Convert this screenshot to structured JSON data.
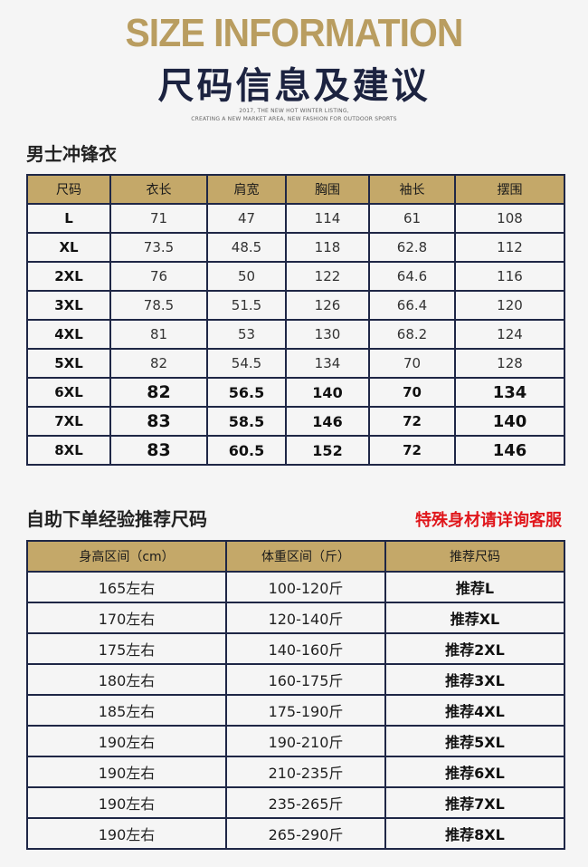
{
  "header": {
    "title_en": "SIZE INFORMATION",
    "title_cn": "尺码信息及建议",
    "tagline_1": "2017, THE NEW HOT WINTER LISTING,",
    "tagline_2": "CREATING A NEW MARKET AREA,  NEW FASHION FOR OUTDOOR SPORTS"
  },
  "size_table": {
    "title": "男士冲锋衣",
    "headers": [
      "尺码",
      "衣长",
      "肩宽",
      "胸围",
      "袖长",
      "摆围"
    ],
    "rows": [
      [
        "L",
        "71",
        "47",
        "114",
        "61",
        "108"
      ],
      [
        "XL",
        "73.5",
        "48.5",
        "118",
        "62.8",
        "112"
      ],
      [
        "2XL",
        "76",
        "50",
        "122",
        "64.6",
        "116"
      ],
      [
        "3XL",
        "78.5",
        "51.5",
        "126",
        "66.4",
        "120"
      ],
      [
        "4XL",
        "81",
        "53",
        "130",
        "68.2",
        "124"
      ],
      [
        "5XL",
        "82",
        "54.5",
        "134",
        "70",
        "128"
      ],
      [
        "6XL",
        "82",
        "56.5",
        "140",
        "70",
        "134"
      ],
      [
        "7XL",
        "83",
        "58.5",
        "146",
        "72",
        "140"
      ],
      [
        "8XL",
        "83",
        "60.5",
        "152",
        "72",
        "146"
      ]
    ]
  },
  "recommend_table": {
    "title": "自助下单经验推荐尺码",
    "notice": "特殊身材请详询客服",
    "headers": [
      "身高区间（cm）",
      "体重区间（斤）",
      "推荐尺码"
    ],
    "rows": [
      [
        "165左右",
        "100-120斤",
        "推荐L"
      ],
      [
        "170左右",
        "120-140斤",
        "推荐XL"
      ],
      [
        "175左右",
        "140-160斤",
        "推荐2XL"
      ],
      [
        "180左右",
        "160-175斤",
        "推荐3XL"
      ],
      [
        "185左右",
        "175-190斤",
        "推荐4XL"
      ],
      [
        "190左右",
        "190-210斤",
        "推荐5XL"
      ],
      [
        "190左右",
        "210-235斤",
        "推荐6XL"
      ],
      [
        "190左右",
        "235-265斤",
        "推荐7XL"
      ],
      [
        "190左右",
        "265-290斤",
        "推荐8XL"
      ]
    ]
  },
  "colors": {
    "gold": "#c4a869",
    "title_gold": "#b99d60",
    "navy": "#1f2746",
    "notice_red": "#e0161b"
  }
}
